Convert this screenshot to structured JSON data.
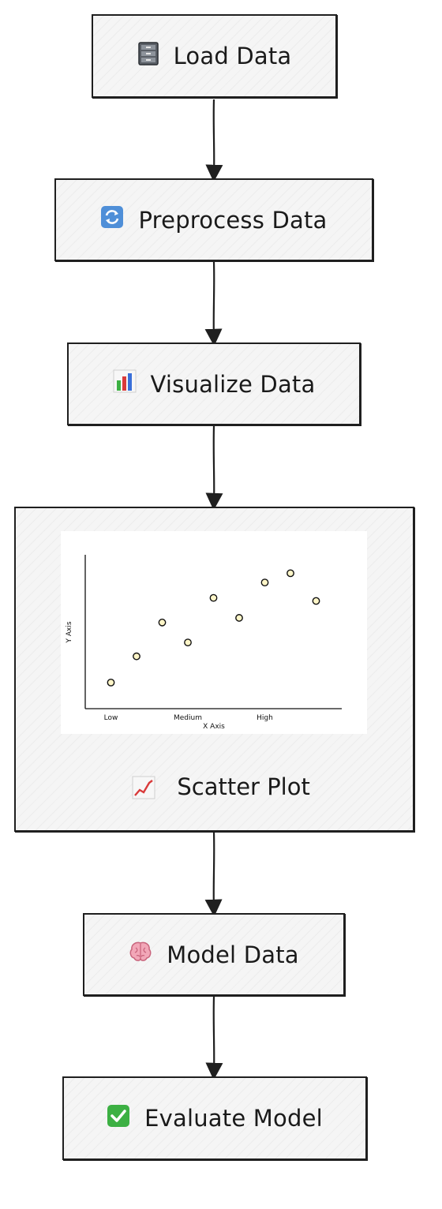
{
  "nodes": {
    "load": {
      "label": "Load Data",
      "icon": "file-cabinet-icon"
    },
    "preprocess": {
      "label": "Preprocess Data",
      "icon": "refresh-icon"
    },
    "visualize": {
      "label": "Visualize Data",
      "icon": "bar-chart-icon"
    },
    "scatter": {
      "label": "Scatter Plot",
      "icon": "chart-increasing-icon"
    },
    "model": {
      "label": "Model Data",
      "icon": "brain-icon"
    },
    "evaluate": {
      "label": "Evaluate Model",
      "icon": "check-mark-icon"
    }
  },
  "chart_data": {
    "type": "scatter",
    "xlabel": "X Axis",
    "ylabel": "Y Axis",
    "x_ticks": [
      "Low",
      "Medium",
      "High"
    ],
    "x_tick_positions": [
      1,
      4,
      7
    ],
    "xlim": [
      0,
      10
    ],
    "ylim": [
      0,
      10
    ],
    "points": [
      {
        "x": 1,
        "y": 1.7
      },
      {
        "x": 2,
        "y": 3.4
      },
      {
        "x": 3,
        "y": 5.6
      },
      {
        "x": 4,
        "y": 4.3
      },
      {
        "x": 5,
        "y": 7.2
      },
      {
        "x": 6,
        "y": 5.9
      },
      {
        "x": 7,
        "y": 8.2
      },
      {
        "x": 8,
        "y": 8.8
      },
      {
        "x": 9,
        "y": 7.0
      }
    ],
    "grid": false
  }
}
